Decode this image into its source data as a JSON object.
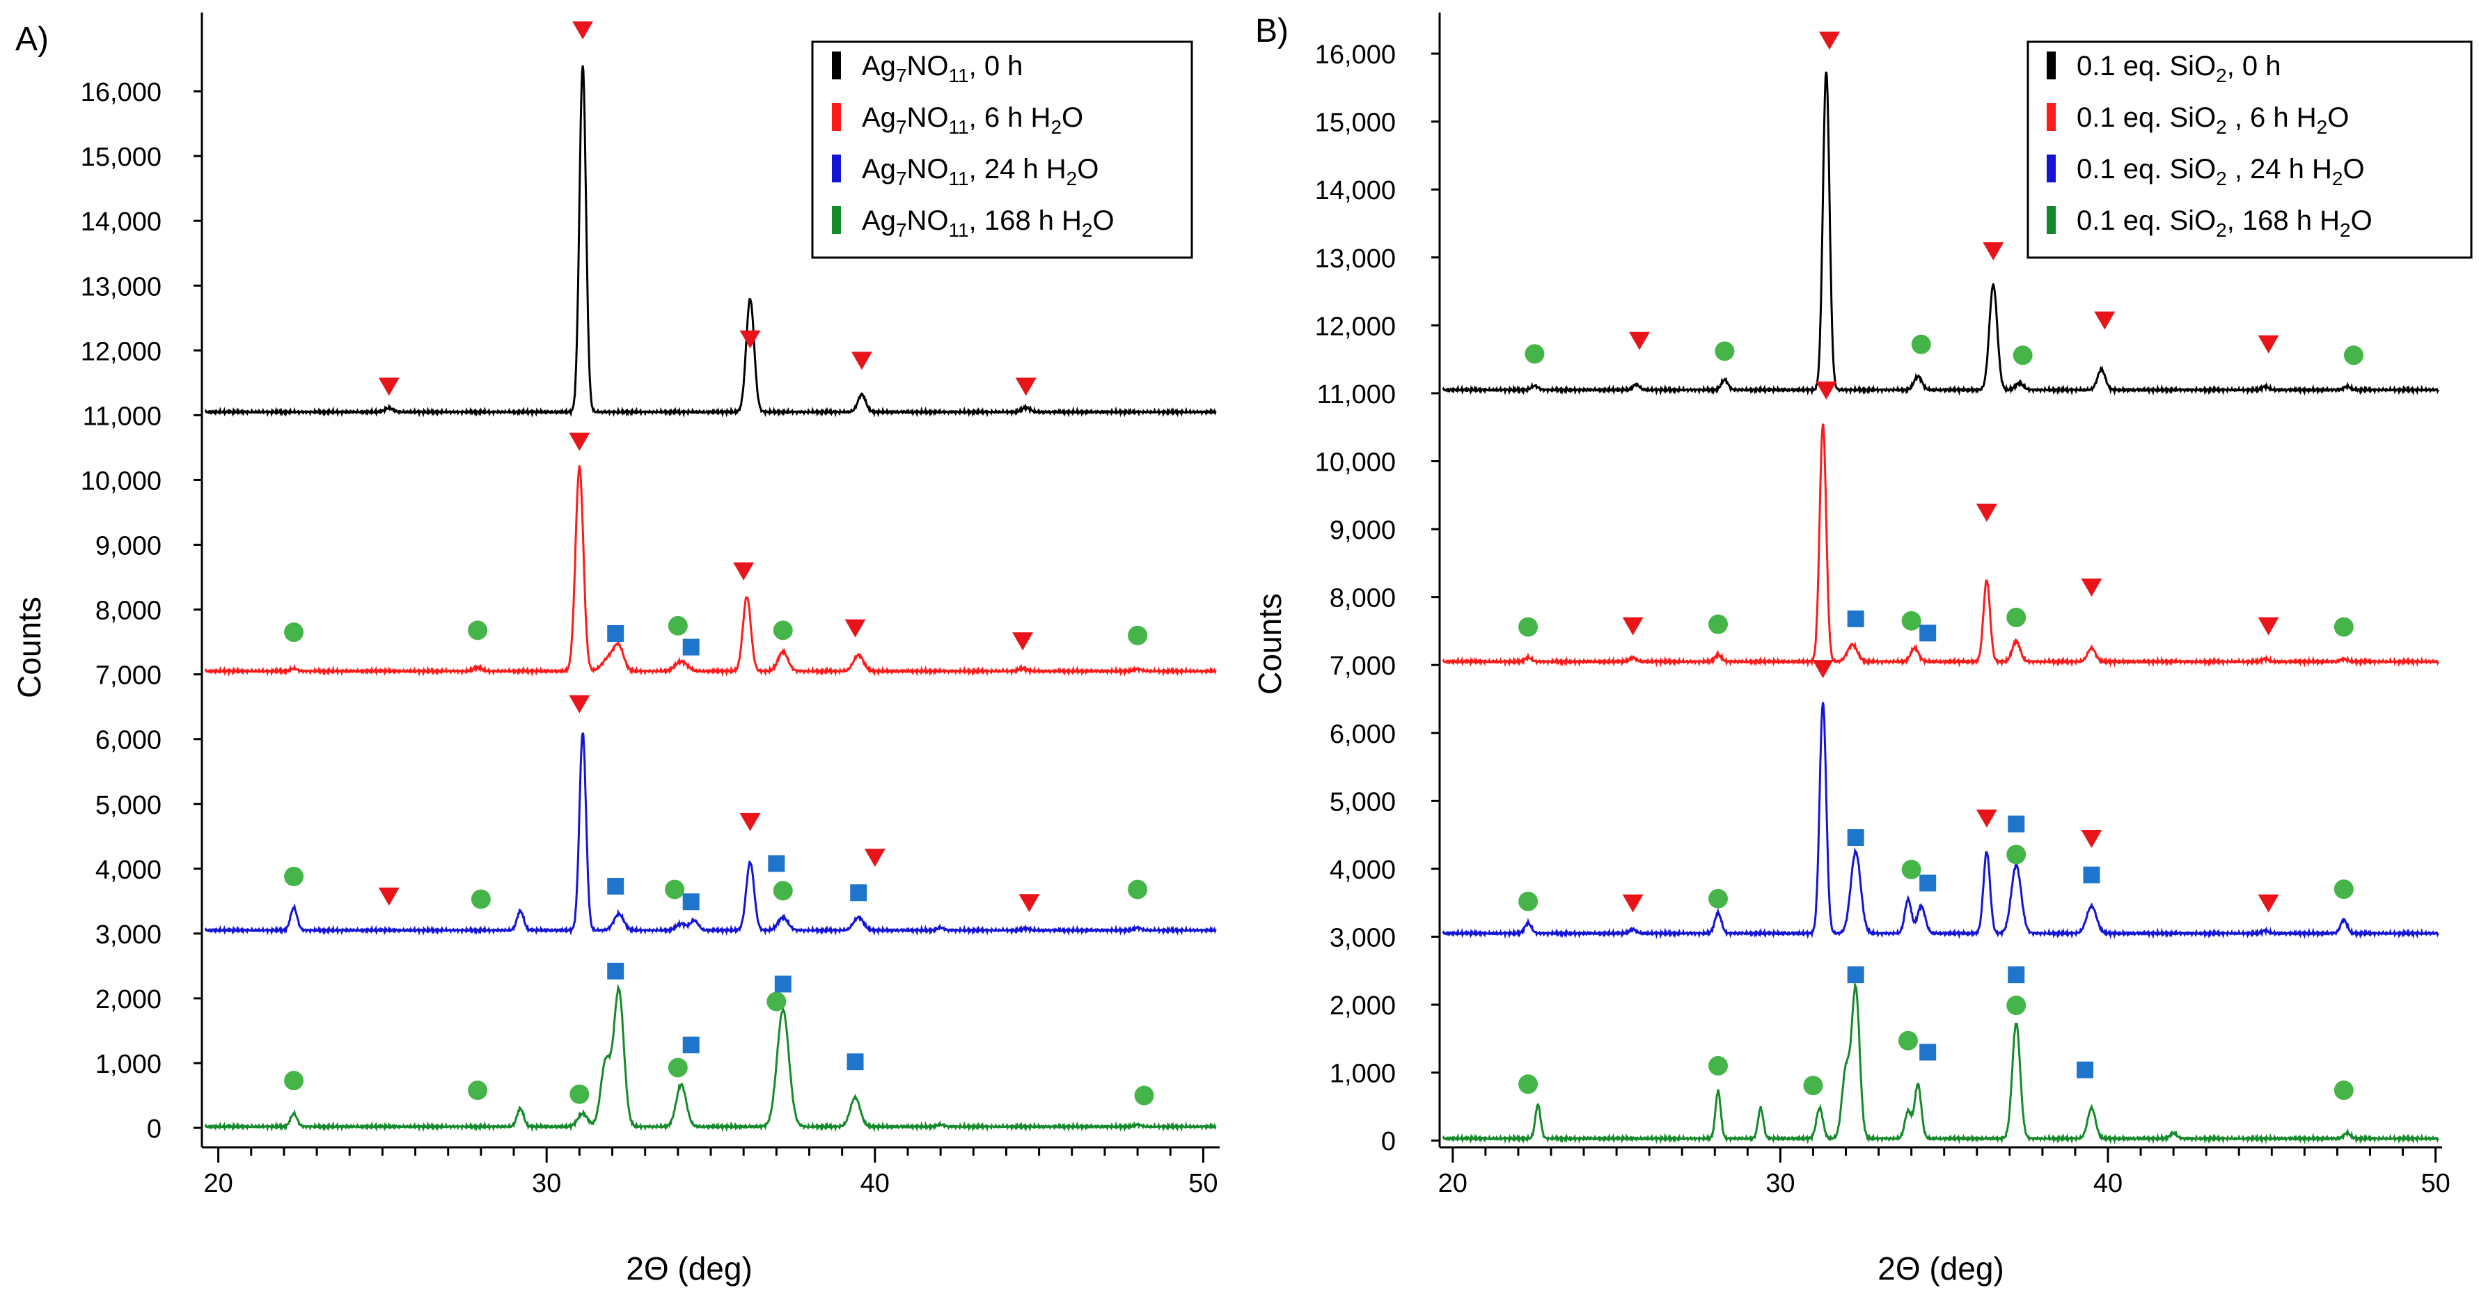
{
  "colors": {
    "s0": "#000000",
    "s1": "#ff1a1a",
    "s2": "#1414d6",
    "s3": "#148a2a",
    "triangle": "#e8141a",
    "circle": "#46b549",
    "square": "#1f74cc"
  },
  "chart_data": [
    {
      "type": "line",
      "panel_label": "A)",
      "xlabel": "2Θ (deg)",
      "ylabel": "Counts",
      "xlim": [
        19.5,
        50.5
      ],
      "ylim": [
        -300,
        17000
      ],
      "xticks": [
        20,
        30,
        40,
        50
      ],
      "yticks": [
        0,
        1000,
        2000,
        3000,
        4000,
        5000,
        6000,
        7000,
        8000,
        9000,
        10000,
        11000,
        12000,
        13000,
        14000,
        15000,
        16000
      ],
      "ytick_labels": [
        "0",
        "1,000",
        "2,000",
        "3,000",
        "4,000",
        "5,000",
        "6,000",
        "7,000",
        "8,000",
        "9,000",
        "10,000",
        "11,000",
        "12,000",
        "13,000",
        "14,000",
        "15,000",
        "16,000"
      ],
      "legend": [
        {
          "pre": "Ag",
          "s1": "7",
          "mid": "NO",
          "s2": "11",
          "post": ", 0 h"
        },
        {
          "pre": "Ag",
          "s1": "7",
          "mid": "NO",
          "s2": "11",
          "post": ", 6 h H",
          "s3": "2",
          "end": "O"
        },
        {
          "pre": "Ag",
          "s1": "7",
          "mid": "NO",
          "s2": "11",
          "post": ", 24 h H",
          "s3": "2",
          "end": "O"
        },
        {
          "pre": "Ag",
          "s1": "7",
          "mid": "NO",
          "s2": "11",
          "post": ", 168 h H",
          "s3": "2",
          "end": "O"
        }
      ],
      "series": [
        {
          "name": "Ag7NO11, 0 h",
          "baseline": 11050,
          "peaks": [
            [
              25.2,
              60,
              0.12
            ],
            [
              31.1,
              5350,
              0.1
            ],
            [
              36.2,
              1750,
              0.12
            ],
            [
              39.6,
              270,
              0.12
            ],
            [
              44.6,
              70,
              0.12
            ]
          ]
        },
        {
          "name": "Ag7NO11, 6 h H2O",
          "baseline": 7050,
          "peaks": [
            [
              22.3,
              40,
              0.1
            ],
            [
              27.9,
              60,
              0.12
            ],
            [
              31.0,
              3150,
              0.12
            ],
            [
              31.9,
              200,
              0.2
            ],
            [
              32.2,
              350,
              0.15
            ],
            [
              34.1,
              150,
              0.18
            ],
            [
              36.1,
              1150,
              0.12
            ],
            [
              37.2,
              300,
              0.15
            ],
            [
              39.5,
              250,
              0.15
            ],
            [
              44.5,
              40,
              0.12
            ],
            [
              48.0,
              30,
              0.12
            ]
          ]
        },
        {
          "name": "Ag7NO11, 24 h H2O",
          "baseline": 3050,
          "peaks": [
            [
              22.3,
              350,
              0.1
            ],
            [
              29.2,
              300,
              0.1
            ],
            [
              31.1,
              3050,
              0.1
            ],
            [
              32.2,
              250,
              0.15
            ],
            [
              34.1,
              100,
              0.15
            ],
            [
              34.5,
              150,
              0.12
            ],
            [
              36.2,
              1050,
              0.12
            ],
            [
              37.2,
              200,
              0.15
            ],
            [
              39.5,
              200,
              0.15
            ],
            [
              42.0,
              40,
              0.1
            ],
            [
              44.6,
              30,
              0.1
            ],
            [
              48.0,
              40,
              0.1
            ]
          ]
        },
        {
          "name": "Ag7NO11, 168 h H2O",
          "baseline": 20,
          "peaks": [
            [
              22.3,
              200,
              0.1
            ],
            [
              29.2,
              280,
              0.1
            ],
            [
              31.1,
              200,
              0.15
            ],
            [
              31.8,
              1000,
              0.15
            ],
            [
              32.2,
              2100,
              0.15
            ],
            [
              34.1,
              650,
              0.15
            ],
            [
              37.2,
              1800,
              0.18
            ],
            [
              39.4,
              450,
              0.15
            ],
            [
              42.0,
              30,
              0.1
            ],
            [
              48.0,
              30,
              0.1
            ]
          ]
        }
      ],
      "markers": [
        {
          "shape": "triangle",
          "points": [
            [
              31.1,
              16950
            ],
            [
              25.2,
              11450
            ],
            [
              36.2,
              12180
            ],
            [
              39.6,
              11850
            ],
            [
              44.6,
              11450
            ],
            [
              31.0,
              10600
            ],
            [
              36.0,
              8600
            ],
            [
              39.4,
              7720
            ],
            [
              44.5,
              7520
            ],
            [
              31.0,
              6550
            ],
            [
              25.2,
              3580
            ],
            [
              36.2,
              4730
            ],
            [
              40.0,
              4180
            ],
            [
              44.7,
              3480
            ]
          ]
        },
        {
          "shape": "circle",
          "points": [
            [
              22.3,
              7650
            ],
            [
              27.9,
              7680
            ],
            [
              34.0,
              7750
            ],
            [
              37.2,
              7680
            ],
            [
              48.0,
              7600
            ],
            [
              22.3,
              3880
            ],
            [
              28.0,
              3530
            ],
            [
              33.9,
              3680
            ],
            [
              37.2,
              3660
            ],
            [
              48.0,
              3680
            ],
            [
              22.3,
              730
            ],
            [
              27.9,
              580
            ],
            [
              31.0,
              520
            ],
            [
              34.0,
              930
            ],
            [
              37.0,
              1950
            ],
            [
              48.2,
              500
            ]
          ]
        },
        {
          "shape": "square",
          "points": [
            [
              32.1,
              7630
            ],
            [
              34.4,
              7420
            ],
            [
              32.1,
              3730
            ],
            [
              34.4,
              3490
            ],
            [
              37.0,
              4080
            ],
            [
              39.5,
              3630
            ],
            [
              32.1,
              2420
            ],
            [
              34.4,
              1280
            ],
            [
              37.2,
              2220
            ],
            [
              39.4,
              1020
            ]
          ]
        }
      ]
    },
    {
      "type": "line",
      "panel_label": "B)",
      "xlabel": "2Θ (deg)",
      "ylabel": "Counts",
      "xlim": [
        19.6,
        50.2
      ],
      "ylim": [
        -100,
        16400
      ],
      "xticks": [
        20,
        30,
        40,
        50
      ],
      "yticks": [
        0,
        1000,
        2000,
        3000,
        4000,
        5000,
        6000,
        7000,
        8000,
        9000,
        10000,
        11000,
        12000,
        13000,
        14000,
        15000,
        16000
      ],
      "ytick_labels": [
        "0",
        "1,000",
        "2,000",
        "3,000",
        "4,000",
        "5,000",
        "6,000",
        "7,000",
        "8,000",
        "9,000",
        "10,000",
        "11,000",
        "12,000",
        "13,000",
        "14,000",
        "15,000",
        "16,000"
      ],
      "legend": [
        {
          "pre": "0.1 eq. SiO",
          "s1": "2",
          "post": ", 0 h"
        },
        {
          "pre": "0.1 eq. SiO",
          "s1": "2",
          "post": " , 6 h H",
          "s2": "2",
          "end": "O"
        },
        {
          "pre": "0.1 eq. SiO",
          "s1": "2",
          "post": " , 24 h H",
          "s2": "2",
          "end": "O"
        },
        {
          "pre": "0.1 eq. SiO",
          "s1": "2",
          "post": ", 168 h H",
          "s2": "2",
          "end": "O"
        }
      ],
      "series": [
        {
          "name": "0.1 eq. SiO2, 0 h",
          "baseline": 11050,
          "peaks": [
            [
              22.5,
              60,
              0.1
            ],
            [
              25.6,
              80,
              0.1
            ],
            [
              28.3,
              150,
              0.1
            ],
            [
              31.4,
              4700,
              0.1
            ],
            [
              34.2,
              200,
              0.12
            ],
            [
              36.5,
              1550,
              0.12
            ],
            [
              37.3,
              100,
              0.12
            ],
            [
              39.8,
              300,
              0.12
            ],
            [
              44.8,
              50,
              0.1
            ],
            [
              47.3,
              50,
              0.1
            ]
          ]
        },
        {
          "name": "0.1 eq. SiO2, 6 h H2O",
          "baseline": 7050,
          "peaks": [
            [
              22.3,
              60,
              0.1
            ],
            [
              25.5,
              60,
              0.1
            ],
            [
              28.1,
              100,
              0.1
            ],
            [
              31.3,
              3500,
              0.1
            ],
            [
              32.2,
              250,
              0.15
            ],
            [
              34.1,
              200,
              0.12
            ],
            [
              36.3,
              1200,
              0.1
            ],
            [
              37.2,
              300,
              0.12
            ],
            [
              39.5,
              200,
              0.12
            ],
            [
              44.8,
              40,
              0.1
            ],
            [
              47.2,
              40,
              0.1
            ]
          ]
        },
        {
          "name": "0.1 eq. SiO2, 24 h H2O",
          "baseline": 3050,
          "peaks": [
            [
              22.3,
              150,
              0.1
            ],
            [
              25.5,
              60,
              0.1
            ],
            [
              28.1,
              300,
              0.1
            ],
            [
              31.3,
              3400,
              0.1
            ],
            [
              32.3,
              1200,
              0.15
            ],
            [
              33.9,
              500,
              0.1
            ],
            [
              34.3,
              400,
              0.12
            ],
            [
              36.3,
              1200,
              0.1
            ],
            [
              37.2,
              1000,
              0.15
            ],
            [
              39.5,
              400,
              0.15
            ],
            [
              44.8,
              40,
              0.1
            ],
            [
              47.2,
              200,
              0.1
            ]
          ]
        },
        {
          "name": "0.1 eq. SiO2, 168 h H2O",
          "baseline": 30,
          "peaks": [
            [
              22.6,
              500,
              0.08
            ],
            [
              28.1,
              700,
              0.08
            ],
            [
              29.4,
              450,
              0.08
            ],
            [
              31.2,
              450,
              0.1
            ],
            [
              32.0,
              1000,
              0.12
            ],
            [
              32.3,
              2200,
              0.12
            ],
            [
              33.9,
              400,
              0.1
            ],
            [
              34.2,
              800,
              0.1
            ],
            [
              37.2,
              1700,
              0.12
            ],
            [
              39.5,
              450,
              0.12
            ],
            [
              42.0,
              80,
              0.1
            ],
            [
              47.3,
              80,
              0.1
            ]
          ]
        }
      ],
      "markers": [
        {
          "shape": "triangle",
          "points": [
            [
              31.5,
              16200
            ],
            [
              36.5,
              13100
            ],
            [
              39.9,
              12080
            ],
            [
              25.7,
              11780
            ],
            [
              44.9,
              11730
            ],
            [
              31.4,
              11050
            ],
            [
              36.3,
              9250
            ],
            [
              39.5,
              8150
            ],
            [
              25.5,
              7580
            ],
            [
              44.9,
              7580
            ],
            [
              31.3,
              6950
            ],
            [
              36.3,
              4750
            ],
            [
              39.5,
              4450
            ],
            [
              25.5,
              3500
            ],
            [
              44.9,
              3500
            ]
          ]
        },
        {
          "shape": "circle",
          "points": [
            [
              22.5,
              11580
            ],
            [
              28.3,
              11620
            ],
            [
              34.3,
              11720
            ],
            [
              37.4,
              11560
            ],
            [
              47.5,
              11560
            ],
            [
              22.3,
              7560
            ],
            [
              28.1,
              7600
            ],
            [
              34.0,
              7650
            ],
            [
              37.2,
              7700
            ],
            [
              47.2,
              7560
            ],
            [
              22.3,
              3520
            ],
            [
              28.1,
              3560
            ],
            [
              34.0,
              3990
            ],
            [
              37.2,
              4210
            ],
            [
              47.2,
              3700
            ],
            [
              22.3,
              830
            ],
            [
              28.1,
              1100
            ],
            [
              31.0,
              810
            ],
            [
              33.9,
              1470
            ],
            [
              37.2,
              1990
            ],
            [
              47.2,
              740
            ]
          ]
        },
        {
          "shape": "square",
          "points": [
            [
              32.3,
              7680
            ],
            [
              34.5,
              7470
            ],
            [
              32.3,
              4460
            ],
            [
              34.5,
              3790
            ],
            [
              37.2,
              4660
            ],
            [
              39.5,
              3910
            ],
            [
              32.3,
              2440
            ],
            [
              34.5,
              1300
            ],
            [
              37.2,
              2440
            ],
            [
              39.3,
              1040
            ]
          ]
        }
      ]
    }
  ]
}
